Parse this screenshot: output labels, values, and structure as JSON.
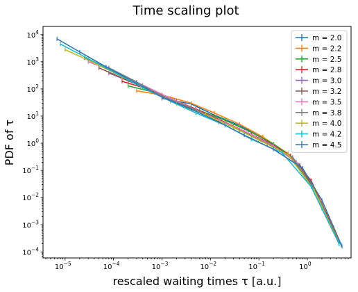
{
  "chart_data": {
    "type": "line",
    "title": "Time scaling plot",
    "xlabel": "rescaled waiting times τ [a.u.]",
    "ylabel": "PDF of τ",
    "xscale": "log",
    "yscale": "log",
    "xlim": [
      3.5e-06,
      8
    ],
    "ylim": [
      6e-05,
      20000.0
    ],
    "x_ticks": [
      {
        "value": 1e-05,
        "base": "10",
        "exp": "−5"
      },
      {
        "value": 0.0001,
        "base": "10",
        "exp": "−4"
      },
      {
        "value": 0.001,
        "base": "10",
        "exp": "−3"
      },
      {
        "value": 0.01,
        "base": "10",
        "exp": "−2"
      },
      {
        "value": 0.1,
        "base": "10",
        "exp": "−1"
      },
      {
        "value": 1,
        "base": "10",
        "exp": "0"
      }
    ],
    "y_ticks": [
      {
        "value": 0.0001,
        "base": "10",
        "exp": "−4"
      },
      {
        "value": 0.001,
        "base": "10",
        "exp": "−3"
      },
      {
        "value": 0.01,
        "base": "10",
        "exp": "−2"
      },
      {
        "value": 0.1,
        "base": "10",
        "exp": "−1"
      },
      {
        "value": 1,
        "base": "10",
        "exp": "0"
      },
      {
        "value": 10,
        "base": "10",
        "exp": "1"
      },
      {
        "value": 100,
        "base": "10",
        "exp": "2"
      },
      {
        "value": 1000,
        "base": "10",
        "exp": "3"
      },
      {
        "value": 10000,
        "base": "10",
        "exp": "4"
      }
    ],
    "grid": false,
    "legend_position": "top-right",
    "series": [
      {
        "name": "m = 2.0",
        "color": "#1f77b4",
        "x": [
          0.001,
          0.004,
          0.012,
          0.04,
          0.12,
          0.4,
          1.0,
          2.0,
          3.5,
          5.0
        ],
        "y": [
          45,
          28,
          11,
          4.5,
          1.6,
          0.4,
          0.05,
          0.004,
          0.0007,
          0.00018
        ]
      },
      {
        "name": "m = 2.2",
        "color": "#ff7f0e",
        "x": [
          0.0003,
          0.001,
          0.004,
          0.012,
          0.04,
          0.12,
          0.4,
          1.0,
          2.0,
          3.5,
          4.5
        ],
        "y": [
          85,
          60,
          30,
          13,
          5,
          1.7,
          0.42,
          0.055,
          0.005,
          0.0008,
          0.0002
        ]
      },
      {
        "name": "m = 2.5",
        "color": "#2ca02c",
        "x": [
          0.0002,
          0.0007,
          0.002,
          0.006,
          0.02,
          0.06,
          0.2,
          0.5,
          1.2,
          2.5,
          4.5
        ],
        "y": [
          130,
          75,
          35,
          16,
          7,
          2.9,
          0.95,
          0.3,
          0.04,
          0.0025,
          0.0002
        ]
      },
      {
        "name": "m = 2.8",
        "color": "#d62728",
        "x": [
          0.00015,
          0.0005,
          0.0015,
          0.005,
          0.015,
          0.05,
          0.15,
          0.45,
          1.2,
          2.5,
          4.5
        ],
        "y": [
          190,
          100,
          45,
          18,
          7.5,
          2.8,
          1.1,
          0.35,
          0.042,
          0.0025,
          0.0002
        ]
      },
      {
        "name": "m = 3.0",
        "color": "#9467bd",
        "x": [
          8e-05,
          0.0003,
          0.001,
          0.003,
          0.01,
          0.03,
          0.1,
          0.3,
          0.8,
          2.0,
          4.5
        ],
        "y": [
          380,
          150,
          60,
          25,
          10,
          4,
          1.5,
          0.5,
          0.12,
          0.005,
          0.0002
        ]
      },
      {
        "name": "m = 3.2",
        "color": "#8c564b",
        "x": [
          5e-05,
          0.0002,
          0.0007,
          0.002,
          0.007,
          0.02,
          0.07,
          0.25,
          0.7,
          2.0,
          4.5
        ],
        "y": [
          600,
          200,
          75,
          32,
          13,
          5.5,
          2.1,
          0.6,
          0.16,
          0.006,
          0.0002
        ]
      },
      {
        "name": "m = 3.5",
        "color": "#e377c2",
        "x": [
          3e-05,
          0.0001,
          0.0004,
          0.0015,
          0.005,
          0.015,
          0.05,
          0.2,
          0.6,
          1.8,
          4.5
        ],
        "y": [
          1000,
          450,
          140,
          45,
          17,
          7,
          2.8,
          0.8,
          0.2,
          0.008,
          0.0002
        ]
      },
      {
        "name": "m = 3.8",
        "color": "#7f7f7f",
        "x": [
          2.5e-05,
          8e-05,
          0.0003,
          0.001,
          0.004,
          0.012,
          0.04,
          0.15,
          0.5,
          1.6,
          4.5
        ],
        "y": [
          1400,
          600,
          180,
          55,
          20,
          8,
          3,
          0.95,
          0.3,
          0.012,
          0.0002
        ]
      },
      {
        "name": "m = 4.0",
        "color": "#bcbd22",
        "x": [
          1e-05,
          4e-05,
          0.00015,
          0.0006,
          0.002,
          0.008,
          0.03,
          0.1,
          0.4,
          1.4,
          4.5
        ],
        "y": [
          2800,
          900,
          280,
          80,
          28,
          11,
          3.8,
          1.3,
          0.38,
          0.018,
          0.0002
        ]
      },
      {
        "name": "m = 4.2",
        "color": "#17becf",
        "x": [
          8e-06,
          3e-05,
          0.0001,
          0.0004,
          0.0015,
          0.005,
          0.02,
          0.07,
          0.3,
          1.2,
          4.5
        ],
        "y": [
          4500,
          1300,
          420,
          110,
          35,
          13,
          4.6,
          1.4,
          0.45,
          0.025,
          0.0002
        ]
      },
      {
        "name": "m = 4.5",
        "color": "#3b75af",
        "x": [
          6.8e-06,
          2e-05,
          7e-05,
          0.0003,
          0.001,
          0.004,
          0.015,
          0.05,
          0.2,
          0.8,
          2.0,
          5.2
        ],
        "y": [
          7000,
          2300,
          650,
          160,
          50,
          18,
          6,
          2,
          0.6,
          0.12,
          0.008,
          0.00016
        ]
      }
    ]
  }
}
